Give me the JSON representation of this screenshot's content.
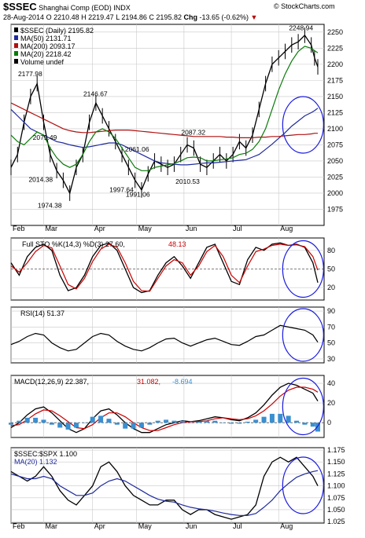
{
  "header": {
    "ticker": "$SSEC",
    "name": "Shanghai Comp (EOD)",
    "exchange": "INDX",
    "watermark": "© StockCharts.com",
    "date": "28-Aug-2014",
    "open": "O 2210.48",
    "high": "H 2219.47",
    "low": "L 2194.86",
    "close": "C 2195.82",
    "chg_label": "Chg",
    "chg_value": "-13.65 (-0.62%)"
  },
  "colors": {
    "price": "#000000",
    "ma50": "#1f2a9c",
    "ma200": "#b01010",
    "ma20": "#0a7a0a",
    "k": "#000000",
    "d": "#cc0000",
    "macd": "#000000",
    "signal": "#cc0000",
    "hist": "#3a8fd0",
    "ratio": "#000000",
    "ratio_ma": "#1f2a9c",
    "circle": "#1a1ae0",
    "grid": "#c8c8c8"
  },
  "chart_data": [
    {
      "type": "line",
      "panel": "price",
      "ylim": [
        1950,
        2262
      ],
      "yticks": [
        1975,
        2000,
        2025,
        2050,
        2075,
        2100,
        2125,
        2150,
        2175,
        2200,
        2225,
        2250
      ],
      "legend": [
        {
          "text": "$SSEC (Daily) 2195.82",
          "series": "price"
        },
        {
          "text": "MA(50) 2131.71",
          "series": "ma50"
        },
        {
          "text": "MA(200) 2093.17",
          "series": "ma200"
        },
        {
          "text": "MA(20) 2218.42",
          "series": "ma20"
        },
        {
          "text": "Volume undef",
          "series": "volume"
        }
      ],
      "annotations": [
        {
          "text": "2177.98",
          "x": 26,
          "y": 2178
        },
        {
          "text": "2079.49",
          "x": 44,
          "y": 2079
        },
        {
          "text": "2014.38",
          "x": 39,
          "y": 2014
        },
        {
          "text": "1974.38",
          "x": 50,
          "y": 1974
        },
        {
          "text": "2146.67",
          "x": 106,
          "y": 2147
        },
        {
          "text": "2061.06",
          "x": 157,
          "y": 2061
        },
        {
          "text": "1997.64",
          "x": 138,
          "y": 1998
        },
        {
          "text": "1991.06",
          "x": 158,
          "y": 1991
        },
        {
          "text": "2087.32",
          "x": 226,
          "y": 2087
        },
        {
          "text": "2010.53",
          "x": 219,
          "y": 2011
        },
        {
          "text": "2248.94",
          "x": 358,
          "y": 2249
        }
      ],
      "x": [
        0,
        8,
        16,
        24,
        32,
        40,
        48,
        56,
        64,
        72,
        80,
        88,
        96,
        104,
        112,
        120,
        128,
        136,
        144,
        152,
        160,
        168,
        176,
        184,
        192,
        200,
        208,
        216,
        224,
        232,
        240,
        248,
        256,
        264,
        272,
        280,
        288,
        296,
        304,
        312,
        320,
        328,
        336,
        344,
        352,
        360,
        368,
        372,
        376
      ],
      "series": [
        {
          "key": "price",
          "values": [
            2040,
            2060,
            2110,
            2150,
            2170,
            2110,
            2060,
            2035,
            2020,
            2000,
            2040,
            2060,
            2110,
            2140,
            2120,
            2100,
            2080,
            2060,
            2040,
            2020,
            2005,
            2030,
            2050,
            2045,
            2040,
            2045,
            2060,
            2075,
            2070,
            2045,
            2040,
            2050,
            2060,
            2050,
            2060,
            2080,
            2070,
            2090,
            2130,
            2170,
            2200,
            2210,
            2220,
            2230,
            2235,
            2245,
            2230,
            2210,
            2196
          ]
        },
        {
          "key": "ma50",
          "values": [
            2130,
            2120,
            2110,
            2100,
            2095,
            2090,
            2085,
            2080,
            2078,
            2075,
            2073,
            2071,
            2072,
            2074,
            2076,
            2078,
            2078,
            2075,
            2070,
            2065,
            2060,
            2055,
            2050,
            2047,
            2046,
            2045,
            2044,
            2044,
            2045,
            2046,
            2047,
            2047,
            2048,
            2049,
            2050,
            2051,
            2052,
            2056,
            2060,
            2068,
            2076,
            2085,
            2094,
            2104,
            2112,
            2120,
            2125,
            2128,
            2132
          ]
        },
        {
          "key": "ma200",
          "values": [
            2140,
            2135,
            2130,
            2125,
            2120,
            2115,
            2110,
            2105,
            2100,
            2097,
            2095,
            2094,
            2094,
            2095,
            2096,
            2097,
            2098,
            2098,
            2098,
            2097,
            2096,
            2095,
            2094,
            2093,
            2092,
            2091,
            2090,
            2089,
            2088,
            2088,
            2088,
            2088,
            2088,
            2087,
            2087,
            2086,
            2086,
            2086,
            2087,
            2087,
            2088,
            2088,
            2089,
            2090,
            2091,
            2091,
            2092,
            2093,
            2093
          ]
        },
        {
          "key": "ma20",
          "values": [
            2090,
            2080,
            2075,
            2085,
            2095,
            2090,
            2070,
            2055,
            2045,
            2040,
            2045,
            2060,
            2080,
            2095,
            2100,
            2095,
            2085,
            2070,
            2055,
            2040,
            2035,
            2035,
            2040,
            2042,
            2044,
            2046,
            2050,
            2055,
            2056,
            2055,
            2050,
            2050,
            2052,
            2053,
            2055,
            2060,
            2062,
            2068,
            2080,
            2100,
            2130,
            2160,
            2185,
            2205,
            2220,
            2228,
            2225,
            2221,
            2218
          ]
        }
      ]
    },
    {
      "type": "line",
      "panel": "sto",
      "ylim": [
        0,
        100
      ],
      "yticks": [
        20,
        50,
        80
      ],
      "legend_k": "Full STO %K(14,3) %D(3) 27.60,",
      "legend_d": "48.13",
      "x": [
        0,
        10,
        20,
        30,
        40,
        50,
        60,
        70,
        80,
        90,
        100,
        110,
        120,
        130,
        140,
        150,
        160,
        170,
        180,
        190,
        200,
        210,
        220,
        230,
        240,
        250,
        260,
        270,
        280,
        290,
        300,
        310,
        320,
        330,
        340,
        350,
        360,
        370,
        376
      ],
      "series": [
        {
          "key": "k",
          "values": [
            60,
            40,
            70,
            85,
            90,
            80,
            40,
            15,
            20,
            40,
            70,
            88,
            92,
            80,
            50,
            20,
            12,
            15,
            40,
            60,
            70,
            55,
            35,
            60,
            85,
            90,
            60,
            30,
            25,
            65,
            85,
            80,
            90,
            92,
            88,
            90,
            85,
            60,
            28
          ]
        },
        {
          "key": "d",
          "values": [
            55,
            45,
            60,
            78,
            88,
            84,
            55,
            25,
            18,
            35,
            62,
            82,
            90,
            85,
            60,
            30,
            15,
            14,
            35,
            55,
            65,
            60,
            40,
            55,
            78,
            88,
            70,
            40,
            28,
            55,
            78,
            82,
            88,
            90,
            88,
            89,
            86,
            70,
            48
          ]
        }
      ]
    },
    {
      "type": "line",
      "panel": "rsi",
      "ylim": [
        25,
        95
      ],
      "yticks": [
        30,
        50,
        70,
        90
      ],
      "legend": "RSI(14) 51.37",
      "x": [
        0,
        10,
        20,
        30,
        40,
        50,
        60,
        70,
        80,
        90,
        100,
        110,
        120,
        130,
        140,
        150,
        160,
        170,
        180,
        190,
        200,
        210,
        220,
        230,
        240,
        250,
        260,
        270,
        280,
        290,
        300,
        310,
        320,
        330,
        340,
        350,
        360,
        370,
        376
      ],
      "series": [
        {
          "key": "rsi",
          "values": [
            48,
            52,
            58,
            62,
            60,
            50,
            44,
            40,
            42,
            50,
            58,
            62,
            60,
            52,
            46,
            42,
            40,
            44,
            50,
            55,
            56,
            50,
            46,
            50,
            54,
            56,
            52,
            48,
            47,
            52,
            58,
            60,
            66,
            72,
            70,
            68,
            66,
            60,
            51
          ]
        }
      ]
    },
    {
      "type": "line",
      "panel": "macd",
      "ylim": [
        -15,
        48
      ],
      "yticks": [
        0,
        20,
        40
      ],
      "legend_macd": "MACD(12,26,9) 22.387,",
      "legend_signal": "31.082,",
      "legend_hist": "-8.694",
      "x": [
        0,
        10,
        20,
        30,
        40,
        50,
        60,
        70,
        80,
        90,
        100,
        110,
        120,
        130,
        140,
        150,
        160,
        170,
        180,
        190,
        200,
        210,
        220,
        230,
        240,
        250,
        260,
        270,
        280,
        290,
        300,
        310,
        320,
        330,
        340,
        350,
        360,
        370,
        376
      ],
      "series": [
        {
          "key": "macd",
          "values": [
            -5,
            0,
            8,
            14,
            16,
            10,
            2,
            -6,
            -10,
            -6,
            4,
            12,
            14,
            8,
            0,
            -6,
            -10,
            -10,
            -6,
            -2,
            0,
            2,
            1,
            2,
            4,
            6,
            5,
            3,
            2,
            5,
            10,
            18,
            28,
            36,
            40,
            38,
            34,
            30,
            22
          ]
        },
        {
          "key": "signal",
          "values": [
            -3,
            -2,
            3,
            9,
            13,
            12,
            7,
            1,
            -5,
            -6,
            -2,
            5,
            10,
            10,
            6,
            0,
            -5,
            -8,
            -8,
            -5,
            -2,
            0,
            1,
            1,
            2,
            4,
            5,
            4,
            3,
            4,
            7,
            12,
            19,
            27,
            33,
            36,
            36,
            34,
            31
          ]
        },
        {
          "key": "hist",
          "values": [
            -2,
            2,
            5,
            5,
            3,
            -2,
            -5,
            -7,
            -5,
            0,
            6,
            7,
            4,
            -2,
            -6,
            -6,
            -5,
            -2,
            2,
            3,
            2,
            2,
            0,
            1,
            2,
            2,
            0,
            -1,
            -1,
            1,
            3,
            6,
            9,
            9,
            7,
            2,
            -2,
            -4,
            -9
          ]
        }
      ]
    },
    {
      "type": "line",
      "panel": "ratio",
      "ylim": [
        1.022,
        1.18
      ],
      "yticks": [
        1.025,
        1.05,
        1.075,
        1.1,
        1.125,
        1.15,
        1.175
      ],
      "legend": [
        {
          "text": "$SSEC:$SPX 1.100",
          "series": "ratio"
        },
        {
          "text": "MA(20) 1.132",
          "series": "ratio_ma"
        }
      ],
      "x": [
        0,
        10,
        20,
        30,
        40,
        50,
        60,
        70,
        80,
        90,
        100,
        110,
        120,
        130,
        140,
        150,
        160,
        170,
        180,
        190,
        200,
        210,
        220,
        230,
        240,
        250,
        260,
        270,
        280,
        290,
        300,
        310,
        320,
        330,
        340,
        350,
        360,
        370,
        376
      ],
      "series": [
        {
          "key": "ratio",
          "values": [
            1.13,
            1.12,
            1.11,
            1.12,
            1.14,
            1.12,
            1.09,
            1.07,
            1.06,
            1.08,
            1.1,
            1.14,
            1.15,
            1.13,
            1.1,
            1.08,
            1.07,
            1.06,
            1.06,
            1.07,
            1.07,
            1.05,
            1.04,
            1.05,
            1.05,
            1.04,
            1.035,
            1.03,
            1.035,
            1.04,
            1.06,
            1.12,
            1.15,
            1.16,
            1.15,
            1.16,
            1.14,
            1.12,
            1.1
          ]
        },
        {
          "key": "ratio_ma",
          "values": [
            1.125,
            1.12,
            1.115,
            1.115,
            1.12,
            1.115,
            1.1,
            1.09,
            1.08,
            1.08,
            1.085,
            1.1,
            1.11,
            1.115,
            1.11,
            1.1,
            1.09,
            1.08,
            1.072,
            1.068,
            1.066,
            1.06,
            1.055,
            1.052,
            1.05,
            1.047,
            1.043,
            1.04,
            1.038,
            1.038,
            1.042,
            1.055,
            1.07,
            1.09,
            1.105,
            1.118,
            1.125,
            1.13,
            1.132
          ]
        }
      ]
    }
  ],
  "xaxis": {
    "months": [
      "Feb",
      "Mar",
      "Apr",
      "May",
      "Jun",
      "Jul",
      "Aug"
    ],
    "month_x": [
      0,
      40,
      100,
      154,
      212,
      270,
      328
    ]
  }
}
